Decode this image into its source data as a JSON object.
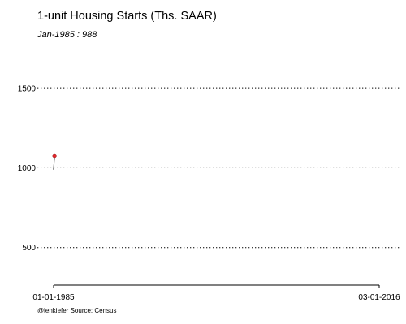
{
  "title": "1-unit Housing Starts (Ths. SAAR)",
  "subtitle": "Jan-1985 : 988",
  "caption": "@lenkiefer Source: Census",
  "chart_data": {
    "type": "line",
    "title": "1-unit Housing Starts (Ths. SAAR)",
    "subtitle": "Jan-1985 : 988",
    "xlabel": "",
    "ylabel": "",
    "x_tick_labels": [
      "01-01-1985",
      "03-01-2016"
    ],
    "xlim": [
      "1985-01-01",
      "2016-03-01"
    ],
    "y_ticks": [
      500,
      1000,
      1500
    ],
    "y_tick_labels": [
      "500",
      "1000",
      "1500"
    ],
    "ylim": [
      300,
      1750
    ],
    "grid": "horizontal dotted",
    "legend": "none",
    "series": [
      {
        "values": [
          {
            "x": "1985-01-01",
            "y": 988
          },
          {
            "x": "1985-02-01",
            "y": 1076
          }
        ],
        "color": "#000000"
      }
    ],
    "highlight_point": {
      "x": "1985-02-01",
      "y": 1076,
      "color": "#e8262b"
    }
  }
}
